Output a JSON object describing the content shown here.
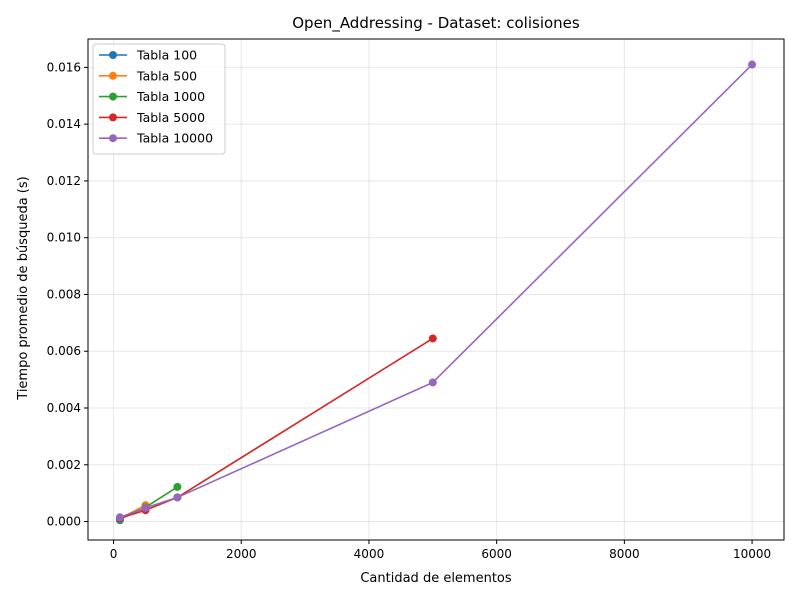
{
  "chart_data": {
    "type": "line",
    "title": "Open_Addressing - Dataset: colisiones",
    "xlabel": "Cantidad de elementos",
    "ylabel": "Tiempo promedio de búsqueda (s)",
    "xlim": [
      -400,
      10500
    ],
    "ylim": [
      -0.00065,
      0.017
    ],
    "xticks": [
      0,
      2000,
      4000,
      6000,
      8000,
      10000
    ],
    "xtick_labels": [
      "0",
      "2000",
      "4000",
      "6000",
      "8000",
      "10000"
    ],
    "yticks": [
      0.0,
      0.002,
      0.004,
      0.006,
      0.008,
      0.01,
      0.012,
      0.014,
      0.016
    ],
    "ytick_labels": [
      "0.000",
      "0.002",
      "0.004",
      "0.006",
      "0.008",
      "0.010",
      "0.012",
      "0.014",
      "0.016"
    ],
    "grid": true,
    "legend_position": "top-left",
    "series": [
      {
        "name": "Tabla 100",
        "color": "#1f77b4",
        "x": [
          100
        ],
        "y": [
          5e-05
        ]
      },
      {
        "name": "Tabla 500",
        "color": "#ff7f0e",
        "x": [
          100,
          500
        ],
        "y": [
          0.0001,
          0.00058
        ]
      },
      {
        "name": "Tabla 1000",
        "color": "#2ca02c",
        "x": [
          100,
          500,
          1000
        ],
        "y": [
          8e-05,
          0.0005,
          0.00122
        ]
      },
      {
        "name": "Tabla 5000",
        "color": "#d62728",
        "x": [
          100,
          500,
          1000,
          5000
        ],
        "y": [
          0.00012,
          0.0004,
          0.00085,
          0.00645
        ]
      },
      {
        "name": "Tabla 10000",
        "color": "#9467bd",
        "x": [
          100,
          500,
          1000,
          5000,
          10000
        ],
        "y": [
          0.00015,
          0.00048,
          0.00085,
          0.0049,
          0.0161
        ]
      }
    ]
  }
}
